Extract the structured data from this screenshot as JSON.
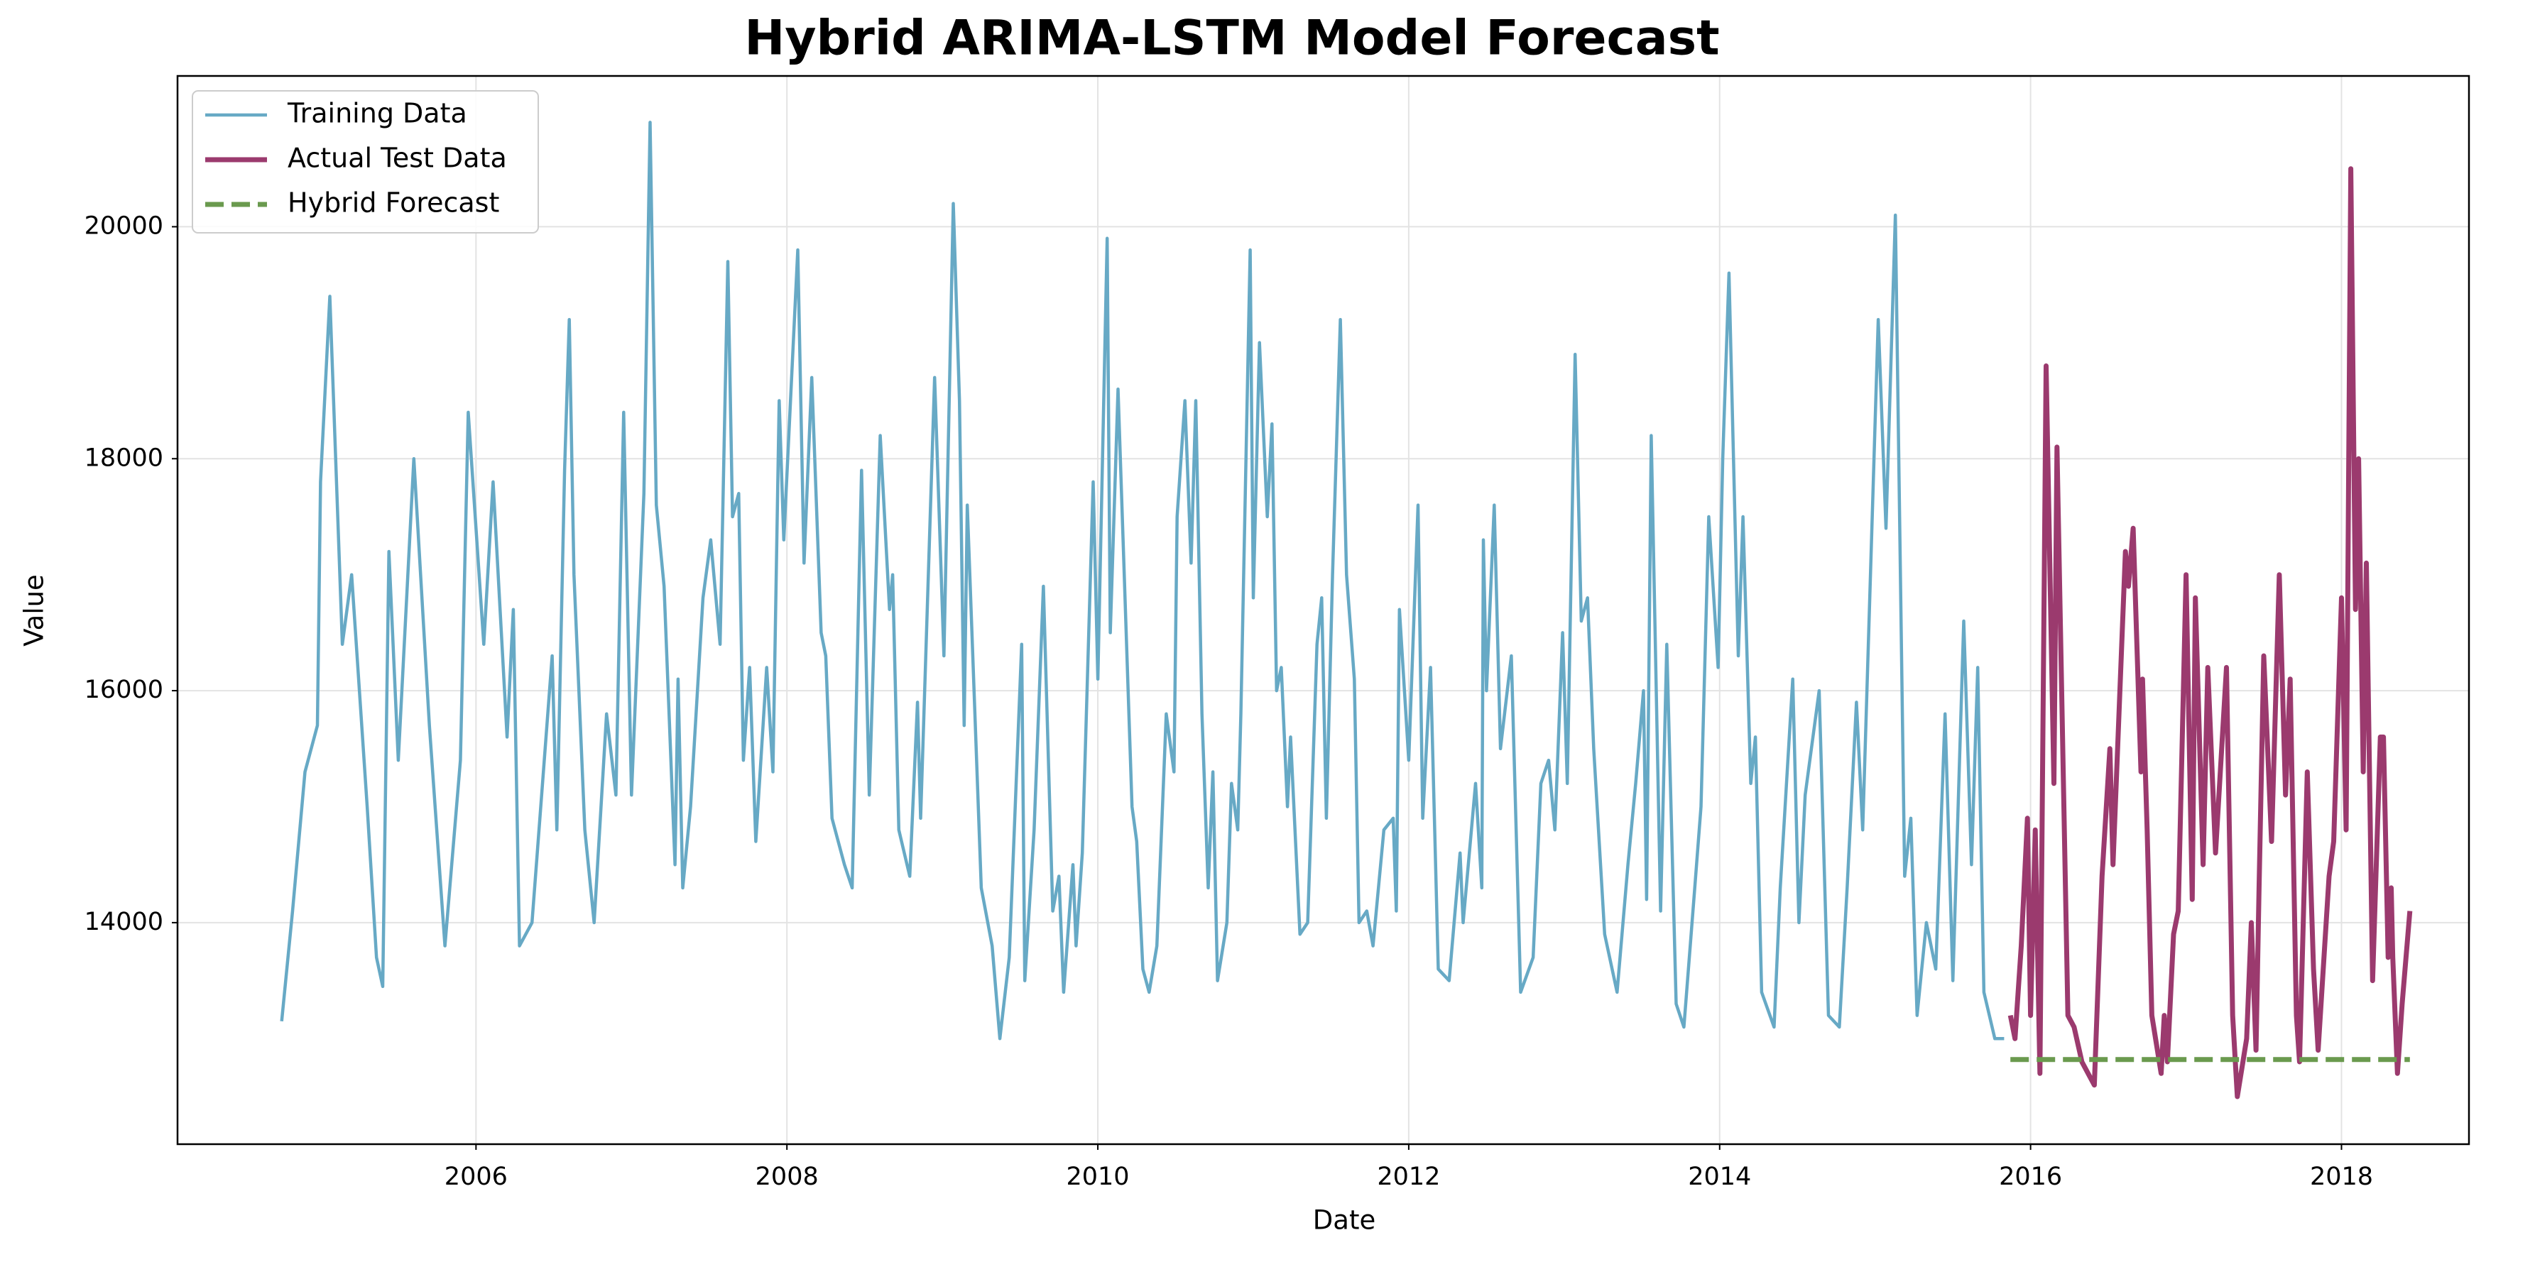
{
  "chart_data": {
    "type": "line",
    "title": "Hybrid ARIMA-LSTM Model Forecast",
    "x_label": "Date",
    "y_label": "Value",
    "xlim": [
      2004.08,
      2018.82
    ],
    "ylim": [
      12090,
      21300
    ],
    "xticks": [
      2006,
      2008,
      2010,
      2012,
      2014,
      2016,
      2018
    ],
    "yticks": [
      14000,
      16000,
      18000,
      20000
    ],
    "grid": true,
    "legend": "upper left",
    "series": [
      {
        "name": "Training Data",
        "color": "#67a9c5",
        "style": "solid",
        "x": [
          2004.75,
          2004.82,
          2004.9,
          2004.98,
          2005.0,
          2005.06,
          2005.14,
          2005.2,
          2005.3,
          2005.36,
          2005.4,
          2005.44,
          2005.5,
          2005.6,
          2005.7,
          2005.8,
          2005.9,
          2005.95,
          2006.05,
          2006.11,
          2006.2,
          2006.24,
          2006.28,
          2006.36,
          2006.49,
          2006.52,
          2006.57,
          2006.6,
          2006.63,
          2006.7,
          2006.76,
          2006.84,
          2006.9,
          2006.95,
          2007.0,
          2007.08,
          2007.12,
          2007.16,
          2007.21,
          2007.28,
          2007.3,
          2007.33,
          2007.38,
          2007.46,
          2007.51,
          2007.57,
          2007.62,
          2007.65,
          2007.69,
          2007.72,
          2007.76,
          2007.8,
          2007.87,
          2007.91,
          2007.95,
          2007.98,
          2008.07,
          2008.11,
          2008.16,
          2008.22,
          2008.25,
          2008.29,
          2008.37,
          2008.42,
          2008.48,
          2008.53,
          2008.6,
          2008.66,
          2008.68,
          2008.72,
          2008.79,
          2008.84,
          2008.86,
          2008.95,
          2009.01,
          2009.07,
          2009.11,
          2009.14,
          2009.16,
          2009.25,
          2009.32,
          2009.37,
          2009.43,
          2009.51,
          2009.53,
          2009.59,
          2009.65,
          2009.71,
          2009.75,
          2009.78,
          2009.84,
          2009.86,
          2009.9,
          2009.97,
          2010.0,
          2010.06,
          2010.08,
          2010.13,
          2010.22,
          2010.25,
          2010.29,
          2010.33,
          2010.38,
          2010.44,
          2010.49,
          2010.51,
          2010.56,
          2010.6,
          2010.63,
          2010.67,
          2010.71,
          2010.74,
          2010.77,
          2010.83,
          2010.86,
          2010.9,
          2010.92,
          2010.98,
          2011.0,
          2011.04,
          2011.09,
          2011.12,
          2011.15,
          2011.18,
          2011.22,
          2011.24,
          2011.3,
          2011.35,
          2011.41,
          2011.44,
          2011.47,
          2011.51,
          2011.56,
          2011.6,
          2011.65,
          2011.68,
          2011.73,
          2011.77,
          2011.84,
          2011.9,
          2011.92,
          2011.94,
          2012.0,
          2012.06,
          2012.09,
          2012.14,
          2012.19,
          2012.26,
          2012.33,
          2012.35,
          2012.43,
          2012.47,
          2012.48,
          2012.5,
          2012.55,
          2012.59,
          2012.66,
          2012.72,
          2012.8,
          2012.85,
          2012.9,
          2012.94,
          2012.99,
          2013.02,
          2013.07,
          2013.11,
          2013.15,
          2013.19,
          2013.26,
          2013.34,
          2013.41,
          2013.46,
          2013.51,
          2013.53,
          2013.56,
          2013.62,
          2013.66,
          2013.72,
          2013.77,
          2013.84,
          2013.88,
          2013.93,
          2013.99,
          2014.02,
          2014.06,
          2014.12,
          2014.15,
          2014.2,
          2014.23,
          2014.27,
          2014.35,
          2014.39,
          2014.47,
          2014.51,
          2014.55,
          2014.64,
          2014.7,
          2014.77,
          2014.82,
          2014.88,
          2014.92,
          2015.02,
          2015.07,
          2015.13,
          2015.19,
          2015.23,
          2015.27,
          2015.33,
          2015.39,
          2015.45,
          2015.5,
          2015.57,
          2015.62,
          2015.66,
          2015.7,
          2015.77,
          2015.83
        ],
        "values": [
          13150,
          14100,
          15300,
          15700,
          17800,
          19400,
          16400,
          17000,
          15000,
          13700,
          13450,
          17200,
          15400,
          18000,
          15700,
          13800,
          15400,
          18400,
          16400,
          17800,
          15600,
          16700,
          13800,
          14000,
          16300,
          14800,
          17900,
          19200,
          17000,
          14800,
          14000,
          15800,
          15100,
          18400,
          15100,
          17700,
          20900,
          17600,
          16900,
          14500,
          16100,
          14300,
          15000,
          16800,
          17300,
          16400,
          19700,
          17500,
          17700,
          15400,
          16200,
          14700,
          16200,
          15300,
          18500,
          17300,
          19800,
          17100,
          18700,
          16500,
          16300,
          14900,
          14500,
          14300,
          17900,
          15100,
          18200,
          16700,
          17000,
          14800,
          14400,
          15900,
          14900,
          18700,
          16300,
          20200,
          18500,
          15700,
          17600,
          14300,
          13800,
          13000,
          13700,
          16400,
          13500,
          14800,
          16900,
          14100,
          14400,
          13400,
          14500,
          13800,
          14600,
          17800,
          16100,
          19900,
          16500,
          18600,
          15000,
          14700,
          13600,
          13400,
          13800,
          15800,
          15300,
          17500,
          18500,
          17100,
          18500,
          15800,
          14300,
          15300,
          13500,
          14000,
          15200,
          14800,
          15800,
          19800,
          16800,
          19000,
          17500,
          18300,
          16000,
          16200,
          15000,
          15600,
          13900,
          14000,
          16400,
          16800,
          14900,
          17000,
          19200,
          17000,
          16100,
          14000,
          14100,
          13800,
          14800,
          14900,
          14100,
          16700,
          15400,
          17600,
          14900,
          16200,
          13600,
          13500,
          14600,
          14000,
          15200,
          14300,
          17300,
          16000,
          17600,
          15500,
          16300,
          13400,
          13700,
          15200,
          15400,
          14800,
          16500,
          15200,
          18900,
          16600,
          16800,
          15500,
          13900,
          13400,
          14500,
          15200,
          16000,
          14200,
          18200,
          14100,
          16400,
          13300,
          13100,
          14300,
          15000,
          17500,
          16200,
          18000,
          19600,
          16300,
          17500,
          15200,
          15600,
          13400,
          13100,
          14300,
          16100,
          14000,
          15100,
          16000,
          13200,
          13100,
          14300,
          15900,
          14800,
          19200,
          17400,
          20100,
          14400,
          14900,
          13200,
          14000,
          13600,
          15800,
          13500,
          16600,
          14500,
          16200,
          13400,
          13000,
          13000
        ]
      },
      {
        "name": "Actual Test Data",
        "color": "#9b3a6e",
        "style": "solid",
        "x": [
          2015.87,
          2015.9,
          2015.94,
          2015.98,
          2016.0,
          2016.03,
          2016.06,
          2016.1,
          2016.15,
          2016.17,
          2016.21,
          2016.24,
          2016.28,
          2016.33,
          2016.41,
          2016.46,
          2016.51,
          2016.53,
          2016.61,
          2016.63,
          2016.66,
          2016.71,
          2016.72,
          2016.75,
          2016.78,
          2016.84,
          2016.86,
          2016.88,
          2016.92,
          2016.95,
          2017.0,
          2017.04,
          2017.06,
          2017.11,
          2017.14,
          2017.19,
          2017.26,
          2017.3,
          2017.33,
          2017.39,
          2017.42,
          2017.45,
          2017.47,
          2017.5,
          2017.55,
          2017.6,
          2017.64,
          2017.67,
          2017.71,
          2017.73,
          2017.78,
          2017.82,
          2017.85,
          2017.92,
          2017.95,
          2018.0,
          2018.03,
          2018.06,
          2018.09,
          2018.11,
          2018.14,
          2018.16,
          2018.2,
          2018.25,
          2018.27,
          2018.3,
          2018.32,
          2018.33,
          2018.36,
          2018.39,
          2018.44
        ],
        "values": [
          13200,
          13000,
          13800,
          14900,
          13200,
          14800,
          12700,
          18800,
          15200,
          18100,
          15300,
          13200,
          13100,
          12800,
          12600,
          14400,
          15500,
          14500,
          17200,
          16900,
          17400,
          15300,
          16100,
          14800,
          13200,
          12700,
          13200,
          12800,
          13900,
          14100,
          17000,
          14200,
          16800,
          14500,
          16200,
          14600,
          16200,
          13200,
          12500,
          13000,
          14000,
          12900,
          14300,
          16300,
          14700,
          17000,
          15100,
          16100,
          13200,
          12800,
          15300,
          13600,
          12900,
          14400,
          14700,
          16800,
          14800,
          20500,
          16700,
          18000,
          15300,
          17100,
          13500,
          15600,
          15600,
          13700,
          14300,
          13700,
          12700,
          13300,
          14100
        ]
      },
      {
        "name": "Hybrid Forecast",
        "color": "#6a9a4e",
        "style": "dashed",
        "x": [
          2015.87,
          2018.44
        ],
        "values": [
          12820,
          12820
        ]
      }
    ]
  }
}
